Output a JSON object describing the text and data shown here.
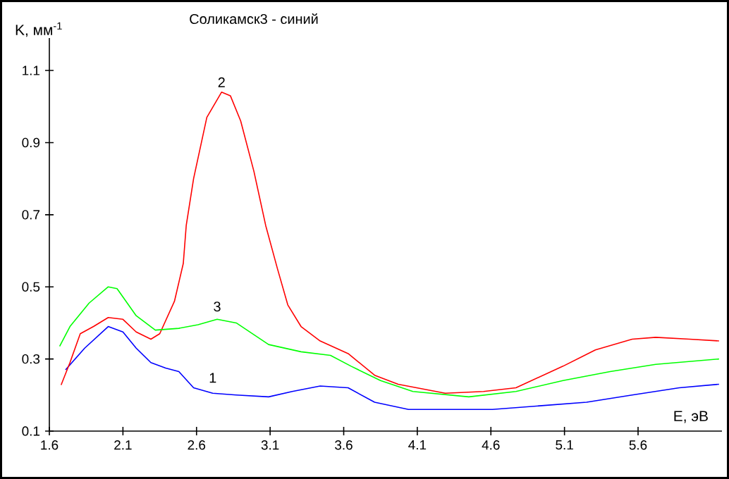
{
  "chart_data": {
    "type": "line",
    "title": "Соликамск3 - синий",
    "xlabel": "E, эВ",
    "ylabel": "K, мм$^{-1}$",
    "xlim": [
      1.6,
      6.17
    ],
    "ylim": [
      0.1,
      1.19
    ],
    "xticks": [
      1.6,
      2.1,
      2.6,
      3.1,
      3.6,
      4.1,
      4.6,
      5.1,
      5.6
    ],
    "yticks": [
      0.1,
      0.3,
      0.5,
      0.7,
      0.9,
      1.1
    ],
    "grid": false,
    "marker": "none",
    "line_style": "solid",
    "series": [
      {
        "name": "1",
        "color": "#0000ff",
        "x": [
          1.71,
          1.84,
          2.0,
          2.1,
          2.19,
          2.29,
          2.39,
          2.48,
          2.58,
          2.71,
          2.87,
          3.09,
          3.25,
          3.44,
          3.63,
          3.81,
          4.04,
          4.29,
          4.61,
          4.93,
          5.25,
          5.56,
          5.88,
          6.15
        ],
        "values": [
          0.27,
          0.33,
          0.39,
          0.375,
          0.33,
          0.29,
          0.275,
          0.265,
          0.22,
          0.205,
          0.2,
          0.195,
          0.21,
          0.225,
          0.22,
          0.18,
          0.16,
          0.16,
          0.16,
          0.17,
          0.18,
          0.2,
          0.22,
          0.23
        ]
      },
      {
        "name": "2",
        "color": "#ff0000",
        "x": [
          1.68,
          1.74,
          1.81,
          1.9,
          2.0,
          2.1,
          2.19,
          2.29,
          2.35,
          2.45,
          2.51,
          2.53,
          2.58,
          2.67,
          2.77,
          2.83,
          2.9,
          2.99,
          3.07,
          3.15,
          3.22,
          3.31,
          3.44,
          3.63,
          3.81,
          3.97,
          4.29,
          4.55,
          4.77,
          5.09,
          5.31,
          5.56,
          5.72,
          5.95,
          6.15
        ],
        "values": [
          0.228,
          0.29,
          0.37,
          0.39,
          0.415,
          0.41,
          0.375,
          0.355,
          0.37,
          0.46,
          0.565,
          0.67,
          0.8,
          0.97,
          1.04,
          1.03,
          0.96,
          0.82,
          0.67,
          0.55,
          0.45,
          0.39,
          0.35,
          0.315,
          0.255,
          0.23,
          0.205,
          0.21,
          0.22,
          0.28,
          0.325,
          0.355,
          0.36,
          0.355,
          0.35
        ]
      },
      {
        "name": "3",
        "color": "#00ff00",
        "x": [
          1.67,
          1.74,
          1.87,
          2.0,
          2.06,
          2.19,
          2.32,
          2.48,
          2.61,
          2.74,
          2.87,
          3.09,
          3.31,
          3.51,
          3.65,
          3.85,
          4.07,
          4.45,
          4.77,
          5.09,
          5.41,
          5.72,
          6.15
        ],
        "values": [
          0.335,
          0.39,
          0.455,
          0.5,
          0.495,
          0.42,
          0.38,
          0.385,
          0.395,
          0.41,
          0.4,
          0.34,
          0.32,
          0.31,
          0.28,
          0.24,
          0.21,
          0.195,
          0.21,
          0.24,
          0.265,
          0.285,
          0.3
        ]
      }
    ]
  }
}
